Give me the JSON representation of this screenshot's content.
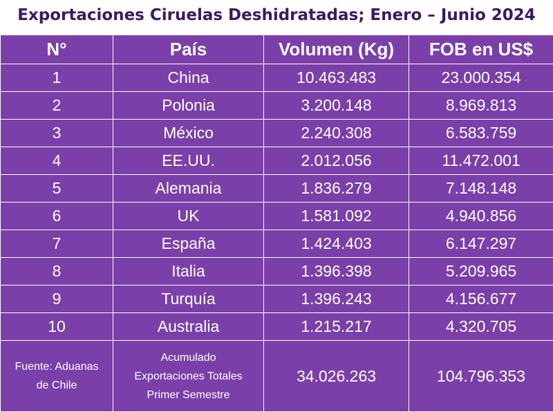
{
  "title": "Exportaciones Ciruelas Deshidratadas; Enero – Junio 2024",
  "colors": {
    "table_background": "#7a3fa8",
    "title_text": "#3a1a63",
    "cell_text": "#ffffff",
    "grid_lines": "#ffffff"
  },
  "table": {
    "headers": [
      "N°",
      "País",
      "Volumen (Kg)",
      "FOB en US$"
    ],
    "rows": [
      {
        "n": "1",
        "pais": "China",
        "volumen": "10.463.483",
        "fob": "23.000.354"
      },
      {
        "n": "2",
        "pais": "Polonia",
        "volumen": "3.200.148",
        "fob": "8.969.813"
      },
      {
        "n": "3",
        "pais": "México",
        "volumen": "2.240.308",
        "fob": "6.583.759"
      },
      {
        "n": "4",
        "pais": "EE.UU.",
        "volumen": "2.012.056",
        "fob": "11.472.001"
      },
      {
        "n": "5",
        "pais": "Alemania",
        "volumen": "1.836.279",
        "fob": "7.148.148"
      },
      {
        "n": "6",
        "pais": "UK",
        "volumen": "1.581.092",
        "fob": "4.940.856"
      },
      {
        "n": "7",
        "pais": "España",
        "volumen": "1.424.403",
        "fob": "6.147.297"
      },
      {
        "n": "8",
        "pais": "Italia",
        "volumen": "1.396.398",
        "fob": "5.209.965"
      },
      {
        "n": "9",
        "pais": "Turquía",
        "volumen": "1.396.243",
        "fob": "4.156.677"
      },
      {
        "n": "10",
        "pais": "Australia",
        "volumen": "1.215.217",
        "fob": "4.320.705"
      }
    ],
    "footer": {
      "source_lines": [
        "Fuente: Aduanas",
        "de Chile"
      ],
      "summary_lines": [
        "Acumulado",
        "Exportaciones Totales",
        "Primer Semestre"
      ],
      "total_volumen": "34.026.263",
      "total_fob": "104.796.353"
    }
  }
}
